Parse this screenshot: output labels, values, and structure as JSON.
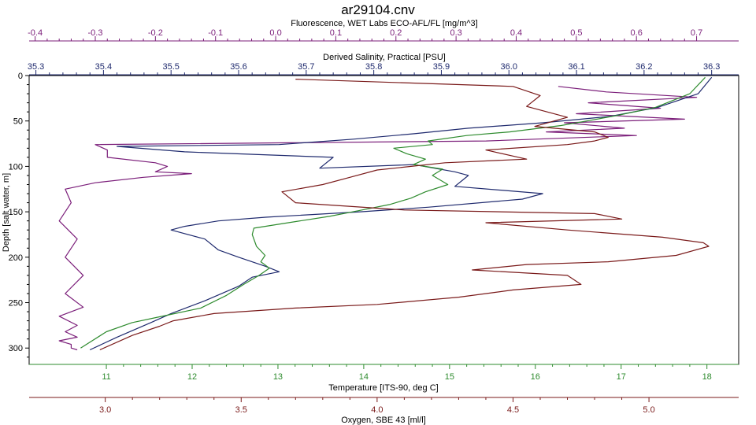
{
  "chart_data": {
    "type": "line",
    "title": "ar29104.cnv",
    "colors": {
      "fluorescence": "#7B1E7A",
      "salinity": "#1F2A6E",
      "temperature": "#2E8B2E",
      "oxygen": "#7A1A1A",
      "grid": "#000000"
    },
    "y_axis": {
      "label": "Depth [salt water, m]",
      "range": [
        0,
        318
      ],
      "inverted": true,
      "ticks": [
        0,
        50,
        100,
        150,
        200,
        250,
        300
      ]
    },
    "x_axes": {
      "fluorescence": {
        "label": "Fluorescence, WET Labs ECO-AFL/FL [mg/m^3]",
        "position": "top",
        "range": [
          -0.41,
          0.77
        ],
        "ticks": [
          -0.4,
          -0.3,
          -0.2,
          -0.1,
          0.0,
          0.1,
          0.2,
          0.3,
          0.4,
          0.5,
          0.6,
          0.7
        ],
        "tick_labels": [
          "-0.4",
          "-0.3",
          "-0.2",
          "-0.1",
          "0.0",
          "0.1",
          "0.2",
          "0.3",
          "0.4",
          "0.5",
          "0.6",
          "0.7"
        ]
      },
      "salinity": {
        "label": "Derived Salinity, Practical [PSU]",
        "position": "top",
        "range": [
          35.29,
          36.34
        ],
        "ticks": [
          35.3,
          35.4,
          35.5,
          35.6,
          35.7,
          35.8,
          35.9,
          36.0,
          36.1,
          36.2,
          36.3
        ],
        "tick_labels": [
          "35.3",
          "35.4",
          "35.5",
          "35.6",
          "35.7",
          "35.8",
          "35.9",
          "36.0",
          "36.1",
          "36.2",
          "36.3"
        ]
      },
      "temperature": {
        "label": "Temperature [ITS-90, deg C]",
        "position": "bottom",
        "range": [
          10.1,
          18.37
        ],
        "ticks": [
          11,
          12,
          13,
          14,
          15,
          16,
          17,
          18
        ],
        "tick_labels": [
          "11",
          "12",
          "13",
          "14",
          "15",
          "16",
          "17",
          "18"
        ]
      },
      "oxygen": {
        "label": "Oxygen, SBE 43 [ml/l]",
        "position": "bottom",
        "range": [
          2.72,
          5.33
        ],
        "ticks": [
          3.0,
          3.5,
          4.0,
          4.5,
          5.0
        ],
        "tick_labels": [
          "3.0",
          "3.5",
          "4.0",
          "4.5",
          "5.0"
        ]
      }
    },
    "series": [
      {
        "key": "fluorescence",
        "x": [
          0.47,
          0.55,
          0.7,
          0.52,
          0.64,
          0.5,
          0.68,
          0.48,
          0.58,
          0.45,
          0.6,
          0.35,
          -0.3,
          -0.28,
          -0.28,
          -0.2,
          -0.18,
          -0.2,
          -0.14,
          -0.22,
          -0.3,
          -0.35,
          -0.34,
          -0.36,
          -0.33,
          -0.35,
          -0.32,
          -0.35,
          -0.32,
          -0.36,
          -0.33,
          -0.35,
          -0.33,
          -0.36,
          -0.34,
          -0.34,
          -0.33
        ],
        "y": [
          12,
          18,
          24,
          30,
          36,
          42,
          48,
          52,
          58,
          62,
          66,
          72,
          76,
          82,
          90,
          96,
          100,
          106,
          108,
          112,
          118,
          125,
          140,
          160,
          180,
          200,
          220,
          240,
          255,
          265,
          275,
          282,
          288,
          292,
          296,
          300,
          302
        ]
      },
      {
        "key": "salinity",
        "x": [
          36.3,
          36.28,
          36.22,
          36.15,
          36.05,
          35.94,
          35.86,
          35.77,
          35.66,
          35.42,
          35.52,
          35.74,
          35.72,
          35.86,
          35.92,
          35.94,
          35.93,
          35.92,
          36.05,
          36.02,
          35.88,
          35.78,
          35.64,
          35.57,
          35.52,
          35.5,
          35.55,
          35.57,
          35.6,
          35.64,
          35.66,
          35.62,
          35.6,
          35.55,
          35.5,
          35.47,
          35.42,
          35.38
        ],
        "y": [
          2,
          20,
          35,
          45,
          52,
          58,
          64,
          70,
          76,
          78,
          84,
          90,
          102,
          98,
          106,
          110,
          116,
          122,
          130,
          136,
          145,
          150,
          156,
          160,
          166,
          170,
          180,
          192,
          200,
          210,
          216,
          222,
          232,
          248,
          262,
          272,
          288,
          302
        ]
      },
      {
        "key": "temperature",
        "x": [
          17.98,
          17.8,
          17.4,
          16.95,
          16.6,
          16.3,
          16.05,
          15.7,
          15.2,
          14.75,
          14.8,
          14.35,
          14.5,
          14.72,
          14.58,
          14.92,
          14.8,
          14.98,
          14.72,
          14.55,
          14.3,
          13.98,
          13.6,
          13.12,
          12.72,
          12.7,
          12.75,
          12.85,
          12.8,
          12.9,
          12.78,
          12.6,
          12.4,
          12.1,
          11.6,
          11.3,
          11.0,
          10.7
        ],
        "y": [
          2,
          20,
          35,
          44,
          50,
          55,
          58,
          62,
          66,
          72,
          76,
          80,
          86,
          92,
          98,
          103,
          110,
          120,
          128,
          135,
          142,
          148,
          155,
          162,
          168,
          175,
          188,
          198,
          205,
          212,
          220,
          230,
          242,
          256,
          266,
          272,
          282,
          300
        ]
      },
      {
        "key": "oxygen",
        "x": [
          3.7,
          4.5,
          4.6,
          4.55,
          4.7,
          4.58,
          4.8,
          4.85,
          4.8,
          4.7,
          4.4,
          4.55,
          4.25,
          4.0,
          3.9,
          3.8,
          3.65,
          3.7,
          4.1,
          4.8,
          4.9,
          4.4,
          4.7,
          5.05,
          5.2,
          5.22,
          5.1,
          4.85,
          4.55,
          4.35,
          4.7,
          4.75,
          4.5,
          4.3,
          4.0,
          3.7,
          3.4,
          3.25,
          3.2,
          3.1,
          2.98
        ],
        "y": [
          4,
          12,
          22,
          34,
          46,
          56,
          62,
          68,
          72,
          76,
          82,
          92,
          96,
          104,
          112,
          120,
          128,
          140,
          148,
          152,
          158,
          162,
          170,
          178,
          184,
          188,
          198,
          205,
          208,
          214,
          220,
          230,
          236,
          244,
          252,
          256,
          262,
          270,
          276,
          286,
          302
        ]
      }
    ]
  }
}
